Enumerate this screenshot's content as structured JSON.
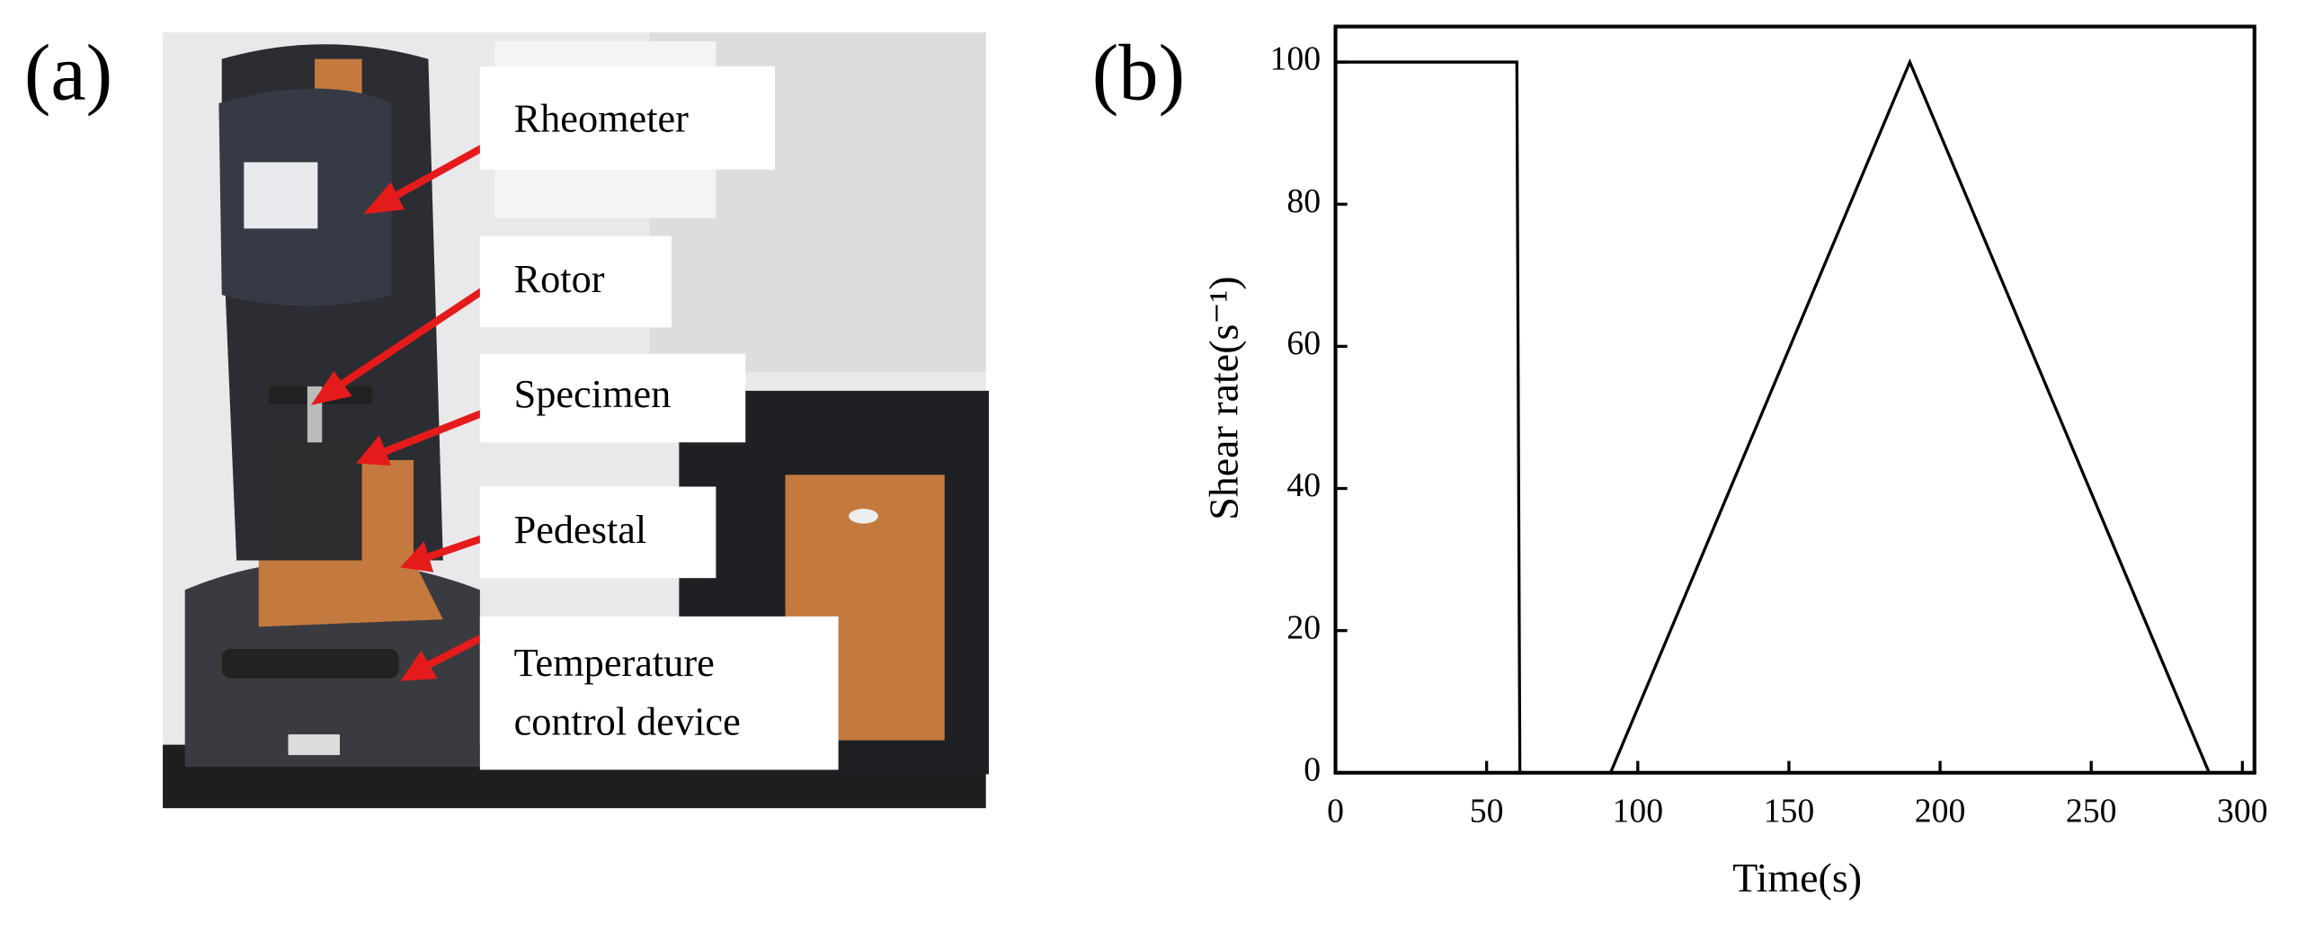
{
  "panel_a": {
    "label": "(a)",
    "labels": [
      {
        "lines": [
          "Rheometer"
        ]
      },
      {
        "lines": [
          "Rotor"
        ]
      },
      {
        "lines": [
          "Specimen"
        ]
      },
      {
        "lines": [
          "Pedestal"
        ]
      },
      {
        "lines": [
          "Temperature",
          "control device"
        ]
      }
    ]
  },
  "chart_data": {
    "type": "line",
    "panel_label": "(b)",
    "x_label": "Time(s)",
    "y_label": "Shear rate(s⁻¹)",
    "x": [
      0,
      60,
      61,
      91,
      190,
      289
    ],
    "values": [
      100,
      100,
      0,
      0,
      100,
      0
    ],
    "color": "#000000",
    "xlim": [
      0,
      304
    ],
    "xticks": [
      0,
      50,
      100,
      150,
      200,
      250,
      300
    ],
    "ylim": [
      0,
      105
    ],
    "yticks": [
      0,
      20,
      40,
      60,
      80,
      100
    ]
  }
}
